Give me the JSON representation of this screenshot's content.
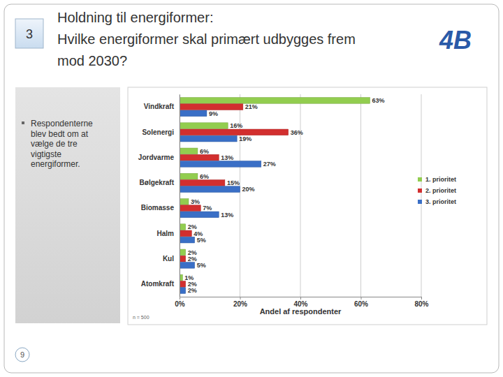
{
  "chart_data": {
    "type": "bar",
    "title": "Holdning til energiformer:",
    "subtitle": "Hvilke energiformer skal primært udbygges frem mod 2030?",
    "orientation": "horizontal",
    "categories": [
      "Vindkraft",
      "Solenergi",
      "Jordvarme",
      "Bølgekraft",
      "Biomasse",
      "Halm",
      "Kul",
      "Atomkraft"
    ],
    "series": [
      {
        "name": "1. prioritet",
        "color": "#92cd4f",
        "values": [
          63,
          16,
          6,
          6,
          3,
          2,
          2,
          1
        ],
        "value_labels": [
          "63%",
          "16%",
          "6%",
          "6%",
          "3%",
          "2%",
          "2%",
          "1%"
        ]
      },
      {
        "name": "2. prioritet",
        "color": "#d22f2f",
        "values": [
          21,
          36,
          13,
          15,
          7,
          4,
          2,
          2
        ],
        "value_labels": [
          "21%",
          "36%",
          "13%",
          "15%",
          "7%",
          "4%",
          "2%",
          "2%"
        ]
      },
      {
        "name": "3. prioritet",
        "color": "#3a6fc6",
        "values": [
          9,
          19,
          27,
          20,
          13,
          5,
          5,
          2
        ],
        "value_labels": [
          "9%",
          "19%",
          "27%",
          "20%",
          "13%",
          "5%",
          "5%",
          "2%"
        ]
      }
    ],
    "x_label": "Andel af respondenter",
    "xlim": [
      0,
      80
    ],
    "xticks": [
      {
        "value": 0,
        "label": "0%"
      },
      {
        "value": 20,
        "label": "20%"
      },
      {
        "value": 40,
        "label": "40%"
      },
      {
        "value": 60,
        "label": "60%"
      },
      {
        "value": 80,
        "label": "80%"
      }
    ],
    "grid": true,
    "legend": "right",
    "data_labels": true,
    "annotations": [
      "n = 500"
    ]
  },
  "slide": {
    "section": "3",
    "logo": "4B",
    "note": "Respondenterne blev bedt om at vælge de tre vigtigste energiformer.",
    "page": "9"
  }
}
